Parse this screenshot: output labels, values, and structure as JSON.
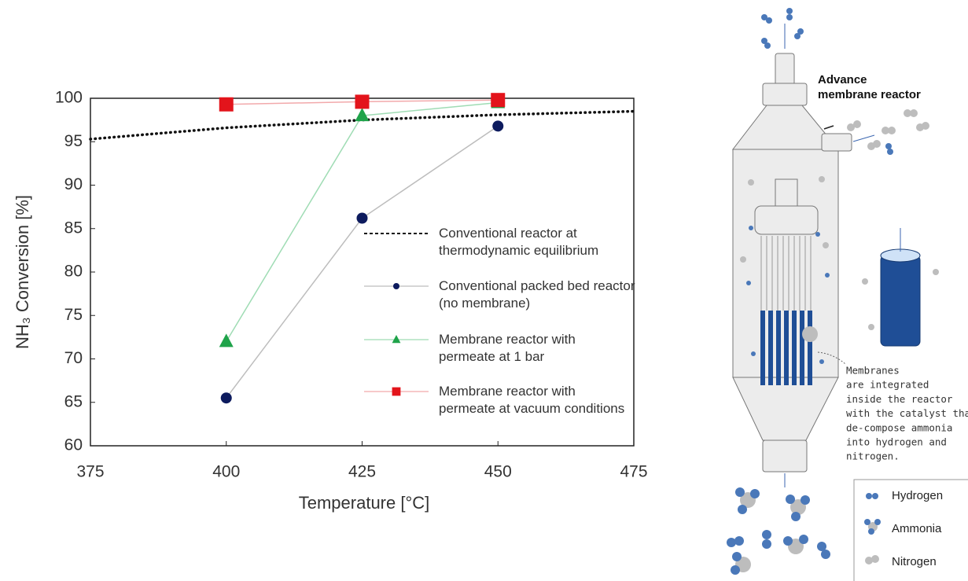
{
  "chart_data": {
    "type": "line",
    "x_label": "Temperature [°C]",
    "y_label": "NH₃ Conversion [%]",
    "x": [
      375,
      400,
      425,
      450,
      475
    ],
    "xlim": [
      375,
      475
    ],
    "xticks": [
      375,
      400,
      425,
      450,
      475
    ],
    "ylim": [
      60,
      100
    ],
    "yticks": [
      60,
      65,
      70,
      75,
      80,
      85,
      90,
      95,
      100
    ],
    "series": [
      {
        "name": "Conventional reactor at thermodynamic equilibrium",
        "color": "#111111",
        "line_color": "#111111",
        "line_style": "dotted",
        "marker": "none",
        "values": [
          95.3,
          96.6,
          97.5,
          98.1,
          98.5
        ]
      },
      {
        "name": "Conventional packed bed reactor (no membrane)",
        "color": "#0d1b5e",
        "line_color": "#bdbdbd",
        "line_style": "solid",
        "marker": "circle",
        "values": [
          null,
          65.5,
          86.2,
          96.8,
          null
        ]
      },
      {
        "name": "Membrane reactor with permeate at 1 bar",
        "color": "#1fa34a",
        "line_color": "#9fdcb4",
        "line_style": "solid",
        "marker": "triangle",
        "values": [
          null,
          72,
          98,
          99.5,
          null
        ]
      },
      {
        "name": "Membrane reactor with permeate at vacuum conditions",
        "color": "#e3141b",
        "line_color": "#f2a9ab",
        "line_style": "solid",
        "marker": "square",
        "values": [
          null,
          99.3,
          99.6,
          99.8,
          null
        ]
      }
    ]
  },
  "diagram": {
    "title_lines": [
      "Advance",
      "membrane reactor"
    ],
    "annotation_lines": [
      "Membranes",
      "are integrated",
      "inside the reactor",
      "with the catalyst that",
      "de-compose ammonia",
      "into hydrogen and",
      "nitrogen."
    ],
    "legend": [
      "Hydrogen",
      "Ammonia",
      "Nitrogen"
    ]
  }
}
